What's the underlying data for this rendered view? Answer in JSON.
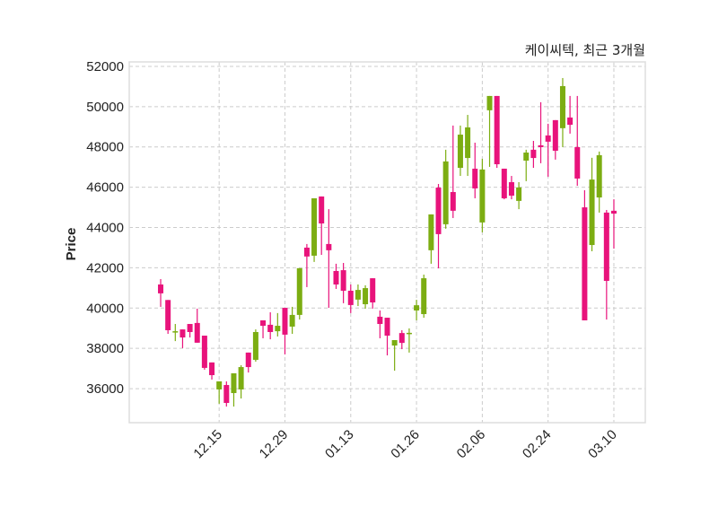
{
  "chart_data": {
    "type": "candlestick",
    "title": "케이씨텍, 최근 3개월",
    "xlabel": "",
    "ylabel": "Price",
    "ylim": [
      34310,
      52220
    ],
    "xlim": [
      -4.3,
      66.3
    ],
    "grid": true,
    "yticks": [
      36000,
      38000,
      40000,
      42000,
      44000,
      46000,
      48000,
      50000,
      52000
    ],
    "ytick_labels": [
      "36000",
      "38000",
      "40000",
      "42000",
      "44000",
      "46000",
      "48000",
      "50000",
      "52000"
    ],
    "xticks": [
      8,
      17,
      26,
      35,
      44,
      53,
      62
    ],
    "xtick_labels": [
      "12.15",
      "12.29",
      "01.13",
      "01.26",
      "02.06",
      "02.24",
      "03.10"
    ],
    "colors": {
      "up": "#7cad12",
      "down": "#e8137b",
      "grid": "#cccccc",
      "frame": "#dddddd"
    },
    "ohlc": [
      [
        41170,
        41440,
        40060,
        40730
      ],
      [
        40400,
        40400,
        38720,
        38900
      ],
      [
        38850,
        39210,
        38360,
        38850
      ],
      [
        38940,
        38940,
        38010,
        38540
      ],
      [
        39210,
        39210,
        38540,
        38810
      ],
      [
        39260,
        39970,
        38280,
        38280
      ],
      [
        38630,
        38630,
        36940,
        37030
      ],
      [
        37300,
        37300,
        36450,
        36670
      ],
      [
        35960,
        36360,
        35250,
        36360
      ],
      [
        36180,
        36360,
        35110,
        35290
      ],
      [
        35780,
        36760,
        35110,
        36760
      ],
      [
        35960,
        37160,
        35510,
        37070
      ],
      [
        37790,
        37790,
        36800,
        37070
      ],
      [
        37430,
        38940,
        37340,
        38810
      ],
      [
        39390,
        39390,
        38500,
        39120
      ],
      [
        39170,
        39790,
        38450,
        38810
      ],
      [
        38850,
        39750,
        38590,
        39120
      ],
      [
        40010,
        40010,
        37700,
        38680
      ],
      [
        39080,
        40060,
        38720,
        39660
      ],
      [
        39660,
        41980,
        39430,
        41980
      ],
      [
        43000,
        43180,
        41040,
        42560
      ],
      [
        42600,
        45450,
        42290,
        45450
      ],
      [
        45540,
        45540,
        42640,
        44200
      ],
      [
        43180,
        44910,
        40010,
        42870
      ],
      [
        41840,
        42200,
        40950,
        41170
      ],
      [
        41880,
        42240,
        40240,
        40860
      ],
      [
        40860,
        41170,
        39750,
        40150
      ],
      [
        40420,
        41170,
        40100,
        40900
      ],
      [
        40190,
        41130,
        39970,
        40990
      ],
      [
        41480,
        41480,
        39970,
        40280
      ],
      [
        39570,
        39880,
        38500,
        39210
      ],
      [
        39520,
        39520,
        37650,
        38630
      ],
      [
        38140,
        38360,
        36890,
        38410
      ],
      [
        38760,
        38900,
        37960,
        38270
      ],
      [
        38770,
        38990,
        37790,
        38770
      ],
      [
        39880,
        40410,
        39390,
        40140
      ],
      [
        39700,
        41660,
        39520,
        41480
      ],
      [
        42870,
        44650,
        42200,
        44650
      ],
      [
        45980,
        46160,
        41970,
        43670
      ],
      [
        44160,
        47860,
        43940,
        47280
      ],
      [
        45760,
        49060,
        44470,
        44830
      ],
      [
        46960,
        49060,
        46560,
        48610
      ],
      [
        47450,
        49590,
        46560,
        48970
      ],
      [
        46920,
        48210,
        45450,
        45940
      ],
      [
        44250,
        47410,
        43760,
        46880
      ],
      [
        49820,
        50530,
        47010,
        50530
      ],
      [
        50530,
        50530,
        46960,
        47140
      ],
      [
        46920,
        46920,
        45400,
        45450
      ],
      [
        46250,
        46560,
        45400,
        45580
      ],
      [
        45320,
        46250,
        44910,
        45990
      ],
      [
        47320,
        47860,
        46300,
        47720
      ],
      [
        47860,
        48300,
        46960,
        47450
      ],
      [
        48080,
        50220,
        47190,
        47990
      ],
      [
        48570,
        49150,
        46520,
        48260
      ],
      [
        49330,
        49330,
        47370,
        47810
      ],
      [
        48930,
        51420,
        47990,
        51020
      ],
      [
        49460,
        50530,
        48660,
        49100
      ],
      [
        47990,
        50530,
        46070,
        46430
      ],
      [
        45000,
        45850,
        39390,
        39390
      ],
      [
        43130,
        47460,
        42820,
        46380
      ],
      [
        45490,
        47770,
        44740,
        47590
      ],
      [
        44740,
        44870,
        39430,
        41350
      ],
      [
        44830,
        45400,
        42950,
        44690
      ]
    ]
  }
}
